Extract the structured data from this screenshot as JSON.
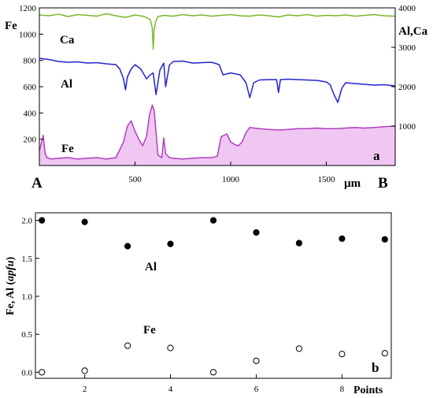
{
  "figure": {
    "panels": [
      "a",
      "b"
    ]
  },
  "chart_data": [
    {
      "type": "line",
      "panel_label": "a",
      "xlabel": "µm",
      "x_start_label": "A",
      "x_end_label": "B",
      "x_ticks": [
        "500",
        "1000",
        "1500"
      ],
      "xlim": [
        0,
        1860
      ],
      "left_axis": {
        "label": "Fe",
        "ylim": [
          0,
          1200
        ],
        "ticks": [
          "200",
          "400",
          "600",
          "800",
          "1000",
          "1200"
        ]
      },
      "right_axis": {
        "label": "Al,Ca",
        "ylim": [
          0,
          4000
        ],
        "ticks": [
          "1000",
          "2000",
          "3000",
          "4000"
        ]
      },
      "colors": {
        "Ca": "#7ab82a",
        "Al": "#2323cf",
        "Fe": "#b03fbf",
        "Fe_fill": "#f0c6f2"
      },
      "series": [
        {
          "name": "Ca",
          "axis": "right",
          "x": [
            0,
            50,
            100,
            150,
            200,
            250,
            300,
            350,
            400,
            450,
            500,
            550,
            580,
            590,
            595,
            600,
            610,
            620,
            650,
            700,
            750,
            800,
            850,
            900,
            950,
            1000,
            1050,
            1100,
            1150,
            1200,
            1250,
            1300,
            1350,
            1400,
            1450,
            1500,
            1550,
            1600,
            1650,
            1700,
            1750,
            1800,
            1860
          ],
          "values": [
            3820,
            3800,
            3840,
            3780,
            3830,
            3810,
            3790,
            3850,
            3800,
            3760,
            3820,
            3780,
            3700,
            3500,
            2950,
            3450,
            3680,
            3780,
            3810,
            3790,
            3830,
            3800,
            3820,
            3790,
            3810,
            3830,
            3800,
            3790,
            3820,
            3800,
            3770,
            3820,
            3800,
            3830,
            3790,
            3810,
            3800,
            3820,
            3790,
            3810,
            3830,
            3800,
            3790
          ]
        },
        {
          "name": "Al",
          "axis": "right",
          "x": [
            0,
            50,
            100,
            150,
            200,
            250,
            300,
            350,
            400,
            420,
            440,
            450,
            460,
            480,
            500,
            530,
            560,
            580,
            595,
            610,
            630,
            650,
            660,
            680,
            700,
            750,
            800,
            850,
            900,
            940,
            960,
            1000,
            1050,
            1080,
            1100,
            1120,
            1150,
            1200,
            1240,
            1250,
            1260,
            1300,
            1350,
            1400,
            1450,
            1500,
            1520,
            1540,
            1560,
            1580,
            1600,
            1650,
            1700,
            1750,
            1800,
            1860
          ],
          "values": [
            2720,
            2690,
            2640,
            2620,
            2630,
            2600,
            2610,
            2580,
            2560,
            2450,
            2200,
            1920,
            2250,
            2450,
            2560,
            2450,
            2200,
            2300,
            2350,
            1800,
            2420,
            2600,
            2000,
            2550,
            2640,
            2650,
            2600,
            2610,
            2620,
            2560,
            2300,
            2350,
            2300,
            2100,
            1720,
            2100,
            2170,
            2180,
            2180,
            1850,
            2180,
            2190,
            2180,
            2170,
            2160,
            2120,
            2050,
            1800,
            1600,
            1950,
            2100,
            2080,
            2060,
            2040,
            2050,
            2020
          ]
        },
        {
          "name": "Fe",
          "axis": "left",
          "x": [
            0,
            20,
            30,
            40,
            60,
            100,
            150,
            200,
            250,
            300,
            350,
            400,
            420,
            440,
            460,
            480,
            500,
            520,
            540,
            560,
            575,
            590,
            600,
            610,
            620,
            640,
            650,
            660,
            680,
            700,
            750,
            800,
            850,
            900,
            930,
            950,
            980,
            1000,
            1020,
            1040,
            1060,
            1080,
            1100,
            1150,
            1200,
            1250,
            1300,
            1350,
            1400,
            1450,
            1500,
            1550,
            1600,
            1650,
            1700,
            1750,
            1800,
            1860
          ],
          "values": [
            110,
            230,
            90,
            60,
            50,
            55,
            60,
            50,
            55,
            60,
            50,
            60,
            120,
            180,
            300,
            340,
            260,
            200,
            150,
            220,
            380,
            460,
            420,
            250,
            80,
            60,
            210,
            90,
            60,
            55,
            50,
            55,
            60,
            60,
            70,
            220,
            240,
            180,
            160,
            150,
            180,
            250,
            290,
            280,
            275,
            270,
            275,
            280,
            280,
            285,
            280,
            280,
            285,
            290,
            285,
            290,
            295,
            300
          ]
        }
      ]
    },
    {
      "type": "scatter",
      "panel_label": "b",
      "xlabel": "Points",
      "ylabel": "Fe, Al (apfu)",
      "ylabel_prefix": "Fe, Al (",
      "ylabel_italic": "apfu",
      "ylabel_suffix": ")",
      "xlim": [
        0.85,
        9.15
      ],
      "ylim": [
        -0.08,
        2.1
      ],
      "x_ticks": [
        "2",
        "4",
        "6",
        "8"
      ],
      "y_ticks": [
        "0.0",
        "0.5",
        "1.0",
        "1.5",
        "2.0"
      ],
      "series": [
        {
          "name": "Al",
          "marker": "filled",
          "x": [
            1,
            2,
            3,
            4,
            5,
            6,
            7,
            8,
            9
          ],
          "values": [
            2.0,
            1.98,
            1.66,
            1.69,
            2.0,
            1.84,
            1.7,
            1.76,
            1.75
          ]
        },
        {
          "name": "Fe",
          "marker": "open",
          "x": [
            1,
            2,
            3,
            4,
            5,
            6,
            7,
            8,
            9
          ],
          "values": [
            0.0,
            0.02,
            0.35,
            0.32,
            0.0,
            0.15,
            0.31,
            0.24,
            0.25
          ]
        }
      ]
    }
  ]
}
